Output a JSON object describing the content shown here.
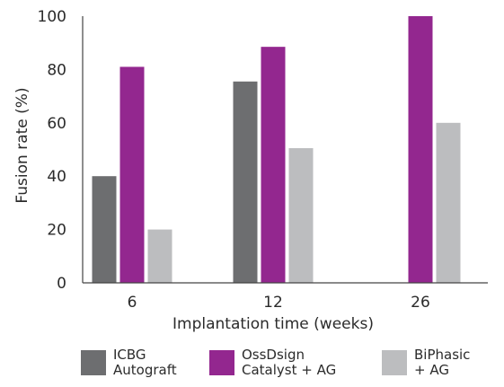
{
  "chart_data": {
    "type": "bar",
    "title": "",
    "xlabel": "Implantation time (weeks)",
    "ylabel": "Fusion rate (%)",
    "ylim": [
      0,
      100
    ],
    "yticks": [
      "0",
      "20",
      "40",
      "60",
      "80",
      "100"
    ],
    "categories": [
      "6",
      "12",
      "26"
    ],
    "grid": false,
    "legend_position": "bottom",
    "series": [
      {
        "name": "ICBG Autograft",
        "legend_lines": [
          "ICBG",
          "Autograft"
        ],
        "color": "#6d6e70",
        "values": [
          40,
          75.5,
          null
        ]
      },
      {
        "name": "OssDsign Catalyst + AG",
        "legend_lines": [
          "OssDsign",
          "Catalyst + AG"
        ],
        "color": "#93278f",
        "values": [
          81,
          88.5,
          100
        ]
      },
      {
        "name": "BiPhasic + AG",
        "legend_lines": [
          "BiPhasic",
          "+ AG"
        ],
        "color": "#bcbdbf",
        "values": [
          20,
          50.5,
          60
        ]
      }
    ]
  }
}
